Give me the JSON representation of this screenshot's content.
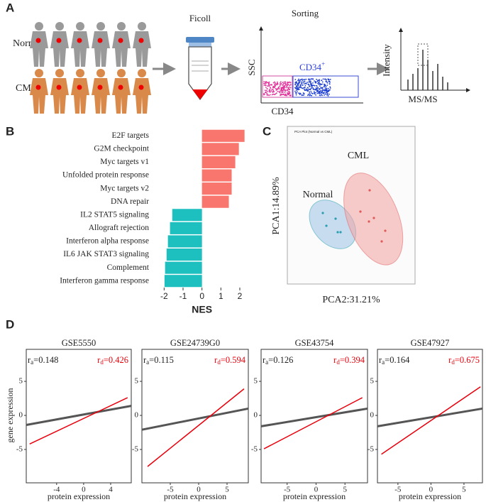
{
  "panels": [
    "A",
    "B",
    "C",
    "D"
  ],
  "workflow": {
    "groups": [
      "Normal",
      "CML"
    ],
    "steps": [
      "Ficoll",
      "Sorting"
    ],
    "facs": {
      "y_label": "SSC",
      "x_label": "CD34",
      "gate_label": "CD34",
      "gate_superscript": "+"
    },
    "ms": {
      "y_label": "Intensity",
      "x_label": "MS/MS"
    }
  },
  "chart_data": [
    {
      "type": "bar",
      "orientation": "horizontal",
      "categories": [
        "E2F targets",
        "G2M checkpoint",
        "Myc targets v1",
        "Unfolded protein response",
        "Myc targets v2",
        "DNA repair",
        "IL2 STAT5 signaling",
        "Allograft rejection",
        "Interferon alpha response",
        "IL6 JAK STAT3 signaling",
        "Complement",
        "Interferon gamma response"
      ],
      "values": [
        2.25,
        1.95,
        1.76,
        1.57,
        1.57,
        1.42,
        -1.57,
        -1.69,
        -1.8,
        -1.87,
        -1.95,
        -1.98
      ],
      "positive_color": "#f8766d",
      "negative_color": "#1ebfbf",
      "xlabel": "NES",
      "xlim": [
        -2.35,
        2.45
      ],
      "xticks": [
        -2,
        -1,
        0,
        1,
        2
      ]
    },
    {
      "type": "scatter",
      "title": "PCA Plot (Normal vs CML)",
      "xlabel": "PCA2:31.21%",
      "ylabel": "PCA1:14.89%",
      "xlim": [
        0,
        180
      ],
      "ylim": [
        0,
        222
      ],
      "series": [
        {
          "name": "Normal",
          "color": "#2a9fb0",
          "ellipse_color": "#9cc3e6",
          "x": [
            50,
            68,
            55,
            71,
            75
          ],
          "values": [
            100,
            92,
            82,
            73,
            73
          ]
        },
        {
          "name": "CML",
          "color": "#e05a5a",
          "ellipse_color": "#f4a3a3",
          "x": [
            116,
            103,
            122,
            115,
            138,
            133
          ],
          "values": [
            132,
            102,
            93,
            88,
            75,
            60
          ]
        }
      ]
    },
    {
      "type": "regression",
      "title": "GSE5550",
      "ylabel": "gene expression",
      "xlabel": "protein expression",
      "xlim": [
        -8.5,
        7.05
      ],
      "ylim": [
        -9.9,
        9.7
      ],
      "xticks": [
        -4,
        0,
        4
      ],
      "yticks": [
        5,
        0,
        -5
      ],
      "annotations": [
        {
          "symbol": "r",
          "subscript": "a",
          "text": "=0.148",
          "color": "#222222"
        },
        {
          "symbol": "r",
          "subscript": "d",
          "text": "=0.426",
          "color": "#e8000b"
        }
      ],
      "series": [
        {
          "color": "#555555",
          "x": [
            -8.5,
            7.05
          ],
          "values": [
            -1.4,
            1.4
          ]
        },
        {
          "color": "#e8000b",
          "x": [
            -8,
            6.5
          ],
          "values": [
            -4.2,
            2.6
          ]
        }
      ]
    },
    {
      "type": "regression",
      "title": "GSE24739G0",
      "xlabel": "protein expression",
      "xlim": [
        -10,
        8.75
      ],
      "ylim": [
        -9.9,
        9.7
      ],
      "xticks": [
        -5,
        0,
        5
      ],
      "yticks": [
        5,
        0,
        -5
      ],
      "annotations": [
        {
          "symbol": "r",
          "subscript": "a",
          "text": "=0.115",
          "color": "#222222"
        },
        {
          "symbol": "r",
          "subscript": "d",
          "text": "=0.594",
          "color": "#e8000b"
        }
      ],
      "series": [
        {
          "color": "#555555",
          "x": [
            -10,
            8.75
          ],
          "values": [
            -2.1,
            1.0
          ]
        },
        {
          "color": "#e8000b",
          "x": [
            -9,
            8
          ],
          "values": [
            -7.5,
            3.9
          ]
        }
      ]
    },
    {
      "type": "regression",
      "title": "GSE43754",
      "xlabel": "protein expression",
      "xlim": [
        -9.5,
        8.9
      ],
      "ylim": [
        -9.9,
        9.7
      ],
      "xticks": [
        -5,
        0,
        5
      ],
      "yticks": [
        5,
        0,
        -5
      ],
      "annotations": [
        {
          "symbol": "r",
          "subscript": "a",
          "text": "=0.126",
          "color": "#222222"
        },
        {
          "symbol": "r",
          "subscript": "d",
          "text": "=0.394",
          "color": "#e8000b"
        }
      ],
      "series": [
        {
          "color": "#555555",
          "x": [
            -9.5,
            8.9
          ],
          "values": [
            -1.6,
            1.0
          ]
        },
        {
          "color": "#e8000b",
          "x": [
            -9,
            8
          ],
          "values": [
            -4.9,
            2.6
          ]
        }
      ]
    },
    {
      "type": "regression",
      "title": "GSE47927",
      "xlabel": "protein expression",
      "xlim": [
        -8.1,
        7.8
      ],
      "ylim": [
        -9.9,
        9.7
      ],
      "xticks": [
        -5,
        0,
        5
      ],
      "yticks": [
        5,
        0,
        -5
      ],
      "annotations": [
        {
          "symbol": "r",
          "subscript": "a",
          "text": "=0.164",
          "color": "#222222"
        },
        {
          "symbol": "r",
          "subscript": "d",
          "text": "=0.675",
          "color": "#e8000b"
        }
      ],
      "series": [
        {
          "color": "#555555",
          "x": [
            -8.1,
            7.8
          ],
          "values": [
            -1.6,
            1.0
          ]
        },
        {
          "color": "#e8000b",
          "x": [
            -7.5,
            7.5
          ],
          "values": [
            -5.7,
            4.2
          ]
        }
      ]
    }
  ]
}
